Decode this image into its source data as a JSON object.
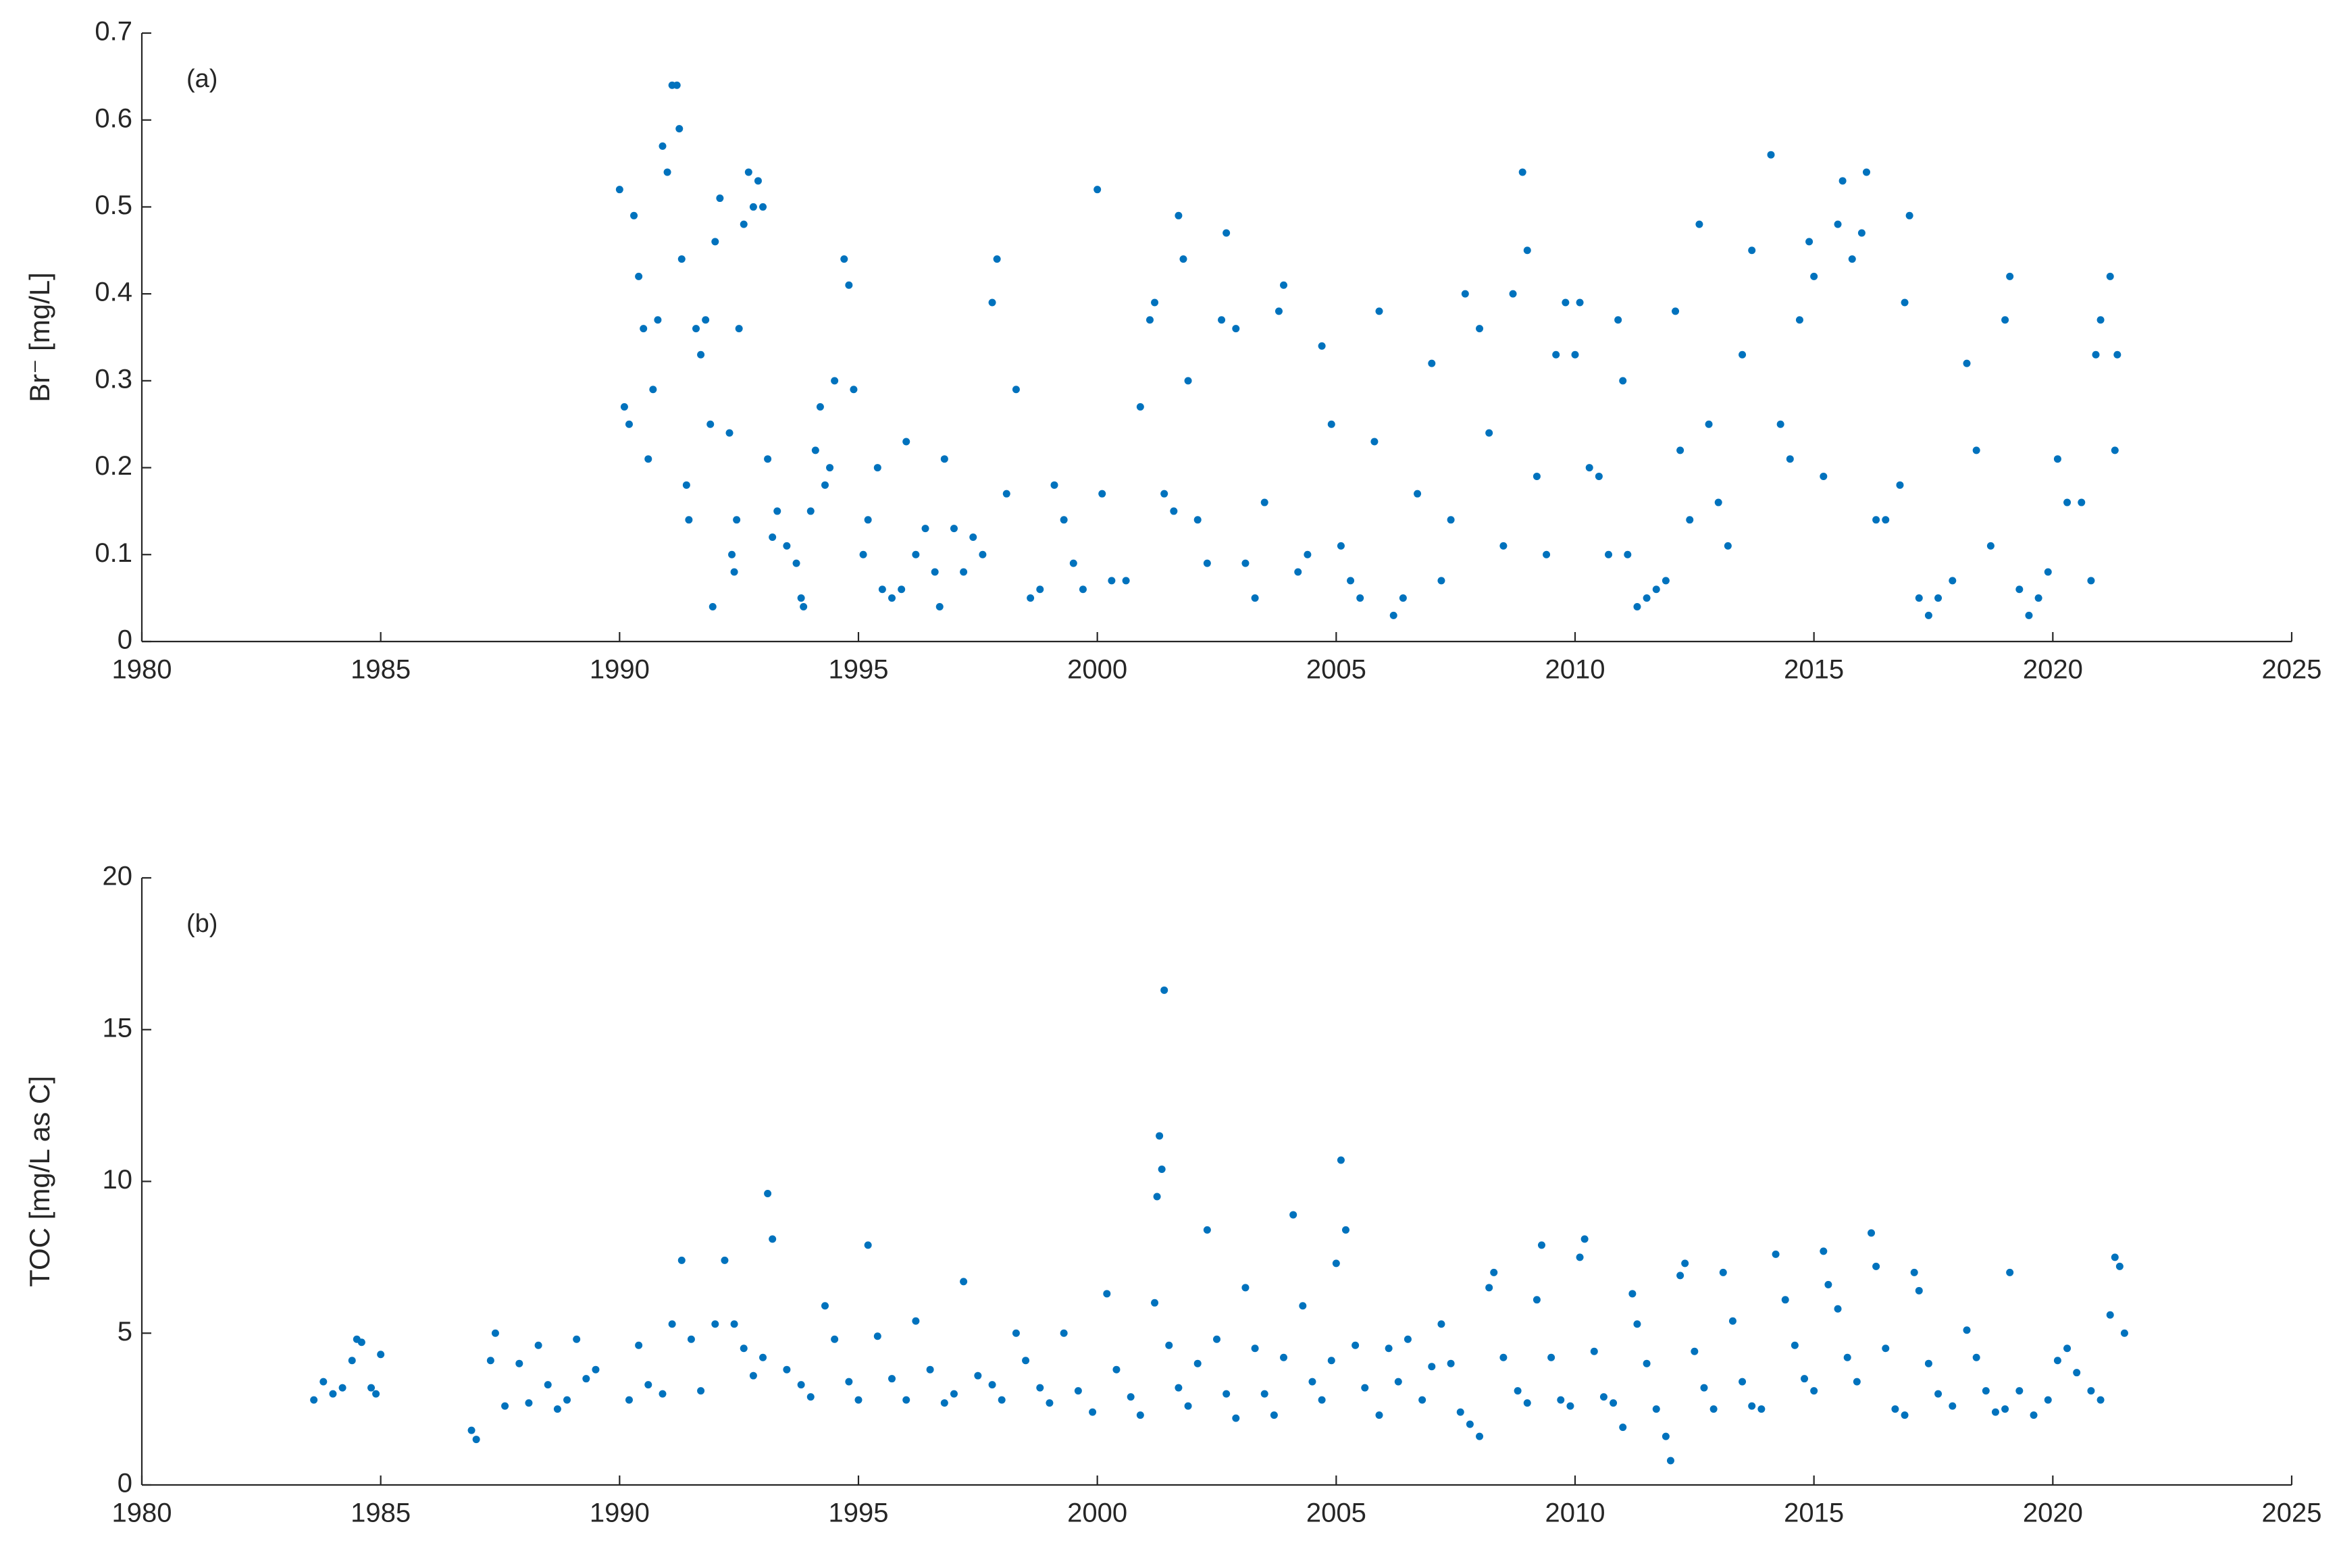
{
  "chart_data": [
    {
      "type": "scatter",
      "annotation": "(a)",
      "ylabel": "Br⁻ [mg/L]",
      "color": "#0072bd",
      "xlim": [
        1980,
        2025
      ],
      "xticks": [
        1980,
        1985,
        1990,
        1995,
        2000,
        2005,
        2010,
        2015,
        2020,
        2025
      ],
      "ylim": [
        0,
        0.7
      ],
      "yticks": [
        0,
        0.1,
        0.2,
        0.3,
        0.4,
        0.5,
        0.6,
        0.7
      ],
      "x": [
        1990.0,
        1990.1,
        1990.2,
        1990.3,
        1990.4,
        1990.5,
        1990.6,
        1990.7,
        1990.8,
        1990.9,
        1991.0,
        1991.1,
        1991.2,
        1991.25,
        1991.3,
        1991.4,
        1991.45,
        1991.6,
        1991.7,
        1991.8,
        1991.9,
        1991.95,
        1992.0,
        1992.1,
        1992.3,
        1992.35,
        1992.4,
        1992.45,
        1992.5,
        1992.6,
        1992.7,
        1992.8,
        1992.9,
        1993.0,
        1993.1,
        1993.2,
        1993.3,
        1993.5,
        1993.7,
        1993.8,
        1993.85,
        1994.0,
        1994.1,
        1994.2,
        1994.3,
        1994.4,
        1994.5,
        1994.7,
        1994.8,
        1994.9,
        1995.1,
        1995.2,
        1995.4,
        1995.5,
        1995.7,
        1995.9,
        1996.0,
        1996.2,
        1996.4,
        1996.6,
        1996.7,
        1996.8,
        1997.0,
        1997.2,
        1997.4,
        1997.6,
        1997.8,
        1997.9,
        1998.1,
        1998.3,
        1998.6,
        1998.8,
        1999.1,
        1999.3,
        1999.5,
        1999.7,
        2000.0,
        2000.1,
        2000.3,
        2000.6,
        2000.9,
        2001.1,
        2001.2,
        2001.4,
        2001.6,
        2001.8,
        2001.7,
        2001.9,
        2002.1,
        2002.3,
        2002.6,
        2002.7,
        2002.9,
        2003.1,
        2003.3,
        2003.5,
        2003.8,
        2003.9,
        2004.2,
        2004.4,
        2004.7,
        2004.9,
        2005.1,
        2005.3,
        2005.5,
        2005.8,
        2005.9,
        2006.2,
        2006.4,
        2006.7,
        2007.0,
        2007.2,
        2007.4,
        2007.7,
        2008.0,
        2008.2,
        2008.5,
        2008.7,
        2008.9,
        2009.0,
        2009.2,
        2009.4,
        2009.6,
        2009.8,
        2010.0,
        2010.1,
        2010.3,
        2010.5,
        2010.7,
        2010.9,
        2011.0,
        2011.1,
        2011.3,
        2011.5,
        2011.7,
        2011.9,
        2012.1,
        2012.2,
        2012.4,
        2012.6,
        2012.8,
        2013.0,
        2013.2,
        2013.5,
        2013.7,
        2014.1,
        2014.3,
        2014.5,
        2014.7,
        2014.9,
        2015.0,
        2015.2,
        2015.5,
        2015.6,
        2015.8,
        2016.0,
        2016.1,
        2016.3,
        2016.5,
        2016.8,
        2016.9,
        2017.0,
        2017.2,
        2017.4,
        2017.6,
        2017.9,
        2018.2,
        2018.4,
        2018.7,
        2019.0,
        2019.1,
        2019.3,
        2019.5,
        2019.7,
        2019.9,
        2020.1,
        2020.3,
        2020.6,
        2020.8,
        2020.9,
        2021.0,
        2021.2,
        2021.3,
        2021.35
      ],
      "values": [
        0.52,
        0.27,
        0.25,
        0.49,
        0.42,
        0.36,
        0.21,
        0.29,
        0.37,
        0.57,
        0.54,
        0.64,
        0.64,
        0.59,
        0.44,
        0.18,
        0.14,
        0.36,
        0.33,
        0.37,
        0.25,
        0.04,
        0.46,
        0.51,
        0.24,
        0.1,
        0.08,
        0.14,
        0.36,
        0.48,
        0.54,
        0.5,
        0.53,
        0.5,
        0.21,
        0.12,
        0.15,
        0.11,
        0.09,
        0.05,
        0.04,
        0.15,
        0.22,
        0.27,
        0.18,
        0.2,
        0.3,
        0.44,
        0.41,
        0.29,
        0.1,
        0.14,
        0.2,
        0.06,
        0.05,
        0.06,
        0.23,
        0.1,
        0.13,
        0.08,
        0.04,
        0.21,
        0.13,
        0.08,
        0.12,
        0.1,
        0.39,
        0.44,
        0.17,
        0.29,
        0.05,
        0.06,
        0.18,
        0.14,
        0.09,
        0.06,
        0.52,
        0.17,
        0.07,
        0.07,
        0.27,
        0.37,
        0.39,
        0.17,
        0.15,
        0.44,
        0.49,
        0.3,
        0.14,
        0.09,
        0.37,
        0.47,
        0.36,
        0.09,
        0.05,
        0.16,
        0.38,
        0.41,
        0.08,
        0.1,
        0.34,
        0.25,
        0.11,
        0.07,
        0.05,
        0.23,
        0.38,
        0.03,
        0.05,
        0.17,
        0.32,
        0.07,
        0.14,
        0.4,
        0.36,
        0.24,
        0.11,
        0.4,
        0.54,
        0.45,
        0.19,
        0.1,
        0.33,
        0.39,
        0.33,
        0.39,
        0.2,
        0.19,
        0.1,
        0.37,
        0.3,
        0.1,
        0.04,
        0.05,
        0.06,
        0.07,
        0.38,
        0.22,
        0.14,
        0.48,
        0.25,
        0.16,
        0.11,
        0.33,
        0.45,
        0.56,
        0.25,
        0.21,
        0.37,
        0.46,
        0.42,
        0.19,
        0.48,
        0.53,
        0.44,
        0.47,
        0.54,
        0.14,
        0.14,
        0.18,
        0.39,
        0.49,
        0.05,
        0.03,
        0.05,
        0.07,
        0.32,
        0.22,
        0.11,
        0.37,
        0.42,
        0.06,
        0.03,
        0.05,
        0.08,
        0.21,
        0.16,
        0.16,
        0.07,
        0.33,
        0.37,
        0.42,
        0.22,
        0.33
      ]
    },
    {
      "type": "scatter",
      "annotation": "(b)",
      "ylabel": "TOC [mg/L as C]",
      "color": "#0072bd",
      "xlim": [
        1980,
        2025
      ],
      "xticks": [
        1980,
        1985,
        1990,
        1995,
        2000,
        2005,
        2010,
        2015,
        2020,
        2025
      ],
      "ylim": [
        0,
        20
      ],
      "yticks": [
        0,
        5,
        10,
        15,
        20
      ],
      "x": [
        1983.6,
        1983.8,
        1984.0,
        1984.2,
        1984.4,
        1984.5,
        1984.6,
        1984.8,
        1984.9,
        1985.0,
        1986.9,
        1987.0,
        1987.3,
        1987.4,
        1987.6,
        1987.9,
        1988.1,
        1988.3,
        1988.5,
        1988.7,
        1988.9,
        1989.1,
        1989.3,
        1989.5,
        1990.2,
        1990.4,
        1990.6,
        1990.9,
        1991.1,
        1991.3,
        1991.5,
        1991.7,
        1992.0,
        1992.2,
        1992.4,
        1992.6,
        1992.8,
        1993.0,
        1993.1,
        1993.2,
        1993.5,
        1993.8,
        1994.0,
        1994.3,
        1994.5,
        1994.8,
        1995.0,
        1995.2,
        1995.4,
        1995.7,
        1996.0,
        1996.2,
        1996.5,
        1996.8,
        1997.0,
        1997.2,
        1997.5,
        1997.8,
        1998.0,
        1998.3,
        1998.5,
        1998.8,
        1999.0,
        1999.3,
        1999.6,
        1999.9,
        2000.2,
        2000.4,
        2000.7,
        2000.9,
        2001.2,
        2001.25,
        2001.3,
        2001.35,
        2001.4,
        2001.5,
        2001.7,
        2001.9,
        2002.1,
        2002.3,
        2002.5,
        2002.7,
        2002.9,
        2003.1,
        2003.3,
        2003.5,
        2003.7,
        2003.9,
        2004.1,
        2004.3,
        2004.5,
        2004.7,
        2004.9,
        2005.0,
        2005.1,
        2005.2,
        2005.4,
        2005.6,
        2005.9,
        2006.1,
        2006.3,
        2006.5,
        2006.8,
        2007.0,
        2007.2,
        2007.4,
        2007.6,
        2007.8,
        2008.0,
        2008.2,
        2008.3,
        2008.5,
        2008.8,
        2009.0,
        2009.2,
        2009.3,
        2009.5,
        2009.7,
        2009.9,
        2010.1,
        2010.2,
        2010.4,
        2010.6,
        2010.8,
        2011.0,
        2011.2,
        2011.3,
        2011.5,
        2011.7,
        2011.9,
        2012.0,
        2012.2,
        2012.3,
        2012.5,
        2012.7,
        2012.9,
        2013.1,
        2013.3,
        2013.5,
        2013.7,
        2013.9,
        2014.2,
        2014.4,
        2014.6,
        2014.8,
        2015.0,
        2015.2,
        2015.3,
        2015.5,
        2015.7,
        2015.9,
        2016.2,
        2016.3,
        2016.5,
        2016.7,
        2016.9,
        2017.1,
        2017.2,
        2017.4,
        2017.6,
        2017.9,
        2018.2,
        2018.4,
        2018.6,
        2018.8,
        2019.0,
        2019.1,
        2019.3,
        2019.6,
        2019.9,
        2020.1,
        2020.3,
        2020.5,
        2020.8,
        2021.0,
        2021.2,
        2021.3,
        2021.4,
        2021.5
      ],
      "values": [
        2.8,
        3.4,
        3.0,
        3.2,
        4.1,
        4.8,
        4.7,
        3.2,
        3.0,
        4.3,
        1.8,
        1.5,
        4.1,
        5.0,
        2.6,
        4.0,
        2.7,
        4.6,
        3.3,
        2.5,
        2.8,
        4.8,
        3.5,
        3.8,
        2.8,
        4.6,
        3.3,
        3.0,
        5.3,
        7.4,
        4.8,
        3.1,
        5.3,
        7.4,
        5.3,
        4.5,
        3.6,
        4.2,
        9.6,
        8.1,
        3.8,
        3.3,
        2.9,
        5.9,
        4.8,
        3.4,
        2.8,
        7.9,
        4.9,
        3.5,
        2.8,
        5.4,
        3.8,
        2.7,
        3.0,
        6.7,
        3.6,
        3.3,
        2.8,
        5.0,
        4.1,
        3.2,
        2.7,
        5.0,
        3.1,
        2.4,
        6.3,
        3.8,
        2.9,
        2.3,
        6.0,
        9.5,
        11.5,
        10.4,
        16.3,
        4.6,
        3.2,
        2.6,
        4.0,
        8.4,
        4.8,
        3.0,
        2.2,
        6.5,
        4.5,
        3.0,
        2.3,
        4.2,
        8.9,
        5.9,
        3.4,
        2.8,
        4.1,
        7.3,
        10.7,
        8.4,
        4.6,
        3.2,
        2.3,
        4.5,
        3.4,
        4.8,
        2.8,
        3.9,
        5.3,
        4.0,
        2.4,
        2.0,
        1.6,
        6.5,
        7.0,
        4.2,
        3.1,
        2.7,
        6.1,
        7.9,
        4.2,
        2.8,
        2.6,
        7.5,
        8.1,
        4.4,
        2.9,
        2.7,
        1.9,
        6.3,
        5.3,
        4.0,
        2.5,
        1.6,
        0.8,
        6.9,
        7.3,
        4.4,
        3.2,
        2.5,
        7.0,
        5.4,
        3.4,
        2.6,
        2.5,
        7.6,
        6.1,
        4.6,
        3.5,
        3.1,
        7.7,
        6.6,
        5.8,
        4.2,
        3.4,
        8.3,
        7.2,
        4.5,
        2.5,
        2.3,
        7.0,
        6.4,
        4.0,
        3.0,
        2.6,
        5.1,
        4.2,
        3.1,
        2.4,
        2.5,
        7.0,
        3.1,
        2.3,
        2.8,
        4.1,
        4.5,
        3.7,
        3.1,
        2.8,
        5.6,
        7.5,
        7.2,
        5.0
      ]
    }
  ]
}
